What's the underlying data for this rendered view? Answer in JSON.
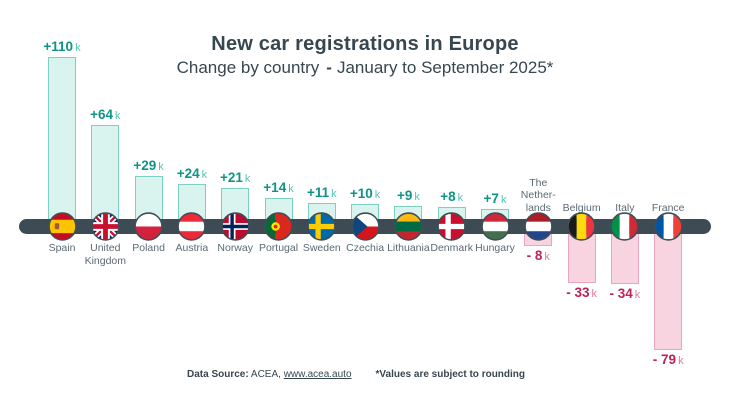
{
  "header": {
    "title": "New car registrations in Europe",
    "subtitle_prefix": "Change by country",
    "subtitle_dash": "-",
    "subtitle_suffix": "January to September 2025*"
  },
  "footer": {
    "source_label": "Data Source:",
    "source_org": "ACEA,",
    "source_link": "www.acea.auto",
    "note": "*Values are subject to rounding"
  },
  "colors": {
    "title": "#37474f",
    "axis": "#3d4b54",
    "label": "#5a6b74",
    "pos_fill": "#d9f3ee",
    "pos_border": "#7bd0c2",
    "pos_val": "#0d9486",
    "pos_unit": "#56c4b4",
    "neg_fill": "#f8d3e0",
    "neg_border": "#eba6bf",
    "neg_val": "#c02058",
    "neg_unit": "#d87ba0"
  },
  "chart_data": {
    "type": "bar",
    "title": "New car registrations in Europe",
    "subtitle": "Change by country - January to September 2025*",
    "unit": "k",
    "baseline": 0,
    "grid": false,
    "value_labels_shown": true,
    "ylim": [
      -90,
      115
    ],
    "categories": [
      {
        "name": "Spain",
        "lines": [
          "Spain"
        ],
        "flag": "spain",
        "value": 110,
        "label": "+110",
        "unit": "k"
      },
      {
        "name": "United Kingdom",
        "lines": [
          "United",
          "Kingdom"
        ],
        "flag": "united-kingdom",
        "value": 64,
        "label": "+64",
        "unit": "k"
      },
      {
        "name": "Poland",
        "lines": [
          "Poland"
        ],
        "flag": "poland",
        "value": 29,
        "label": "+29",
        "unit": "k"
      },
      {
        "name": "Austria",
        "lines": [
          "Austria"
        ],
        "flag": "austria",
        "value": 24,
        "label": "+24",
        "unit": "k"
      },
      {
        "name": "Norway",
        "lines": [
          "Norway"
        ],
        "flag": "norway",
        "value": 21,
        "label": "+21",
        "unit": "k"
      },
      {
        "name": "Portugal",
        "lines": [
          "Portugal"
        ],
        "flag": "portugal",
        "value": 14,
        "label": "+14",
        "unit": "k"
      },
      {
        "name": "Sweden",
        "lines": [
          "Sweden"
        ],
        "flag": "sweden",
        "value": 11,
        "label": "+11",
        "unit": "k"
      },
      {
        "name": "Czechia",
        "lines": [
          "Czechia"
        ],
        "flag": "czechia",
        "value": 10,
        "label": "+10",
        "unit": "k"
      },
      {
        "name": "Lithuania",
        "lines": [
          "Lithuania"
        ],
        "flag": "lithuania",
        "value": 9,
        "label": "+9",
        "unit": "k"
      },
      {
        "name": "Denmark",
        "lines": [
          "Denmark"
        ],
        "flag": "denmark",
        "value": 8,
        "label": "+8",
        "unit": "k"
      },
      {
        "name": "Hungary",
        "lines": [
          "Hungary"
        ],
        "flag": "hungary",
        "value": 7,
        "label": "+7",
        "unit": "k"
      },
      {
        "name": "The Netherlands",
        "lines": [
          "The",
          "Nether-",
          "lands"
        ],
        "flag": "netherlands",
        "value": -8,
        "label": "- 8",
        "unit": "k"
      },
      {
        "name": "Belgium",
        "lines": [
          "Belgium"
        ],
        "flag": "belgium",
        "value": -33,
        "label": "- 33",
        "unit": "k"
      },
      {
        "name": "Italy",
        "lines": [
          "Italy"
        ],
        "flag": "italy",
        "value": -34,
        "label": "- 34",
        "unit": "k"
      },
      {
        "name": "France",
        "lines": [
          "France"
        ],
        "flag": "france",
        "value": -79,
        "label": "- 79",
        "unit": "k"
      }
    ]
  }
}
